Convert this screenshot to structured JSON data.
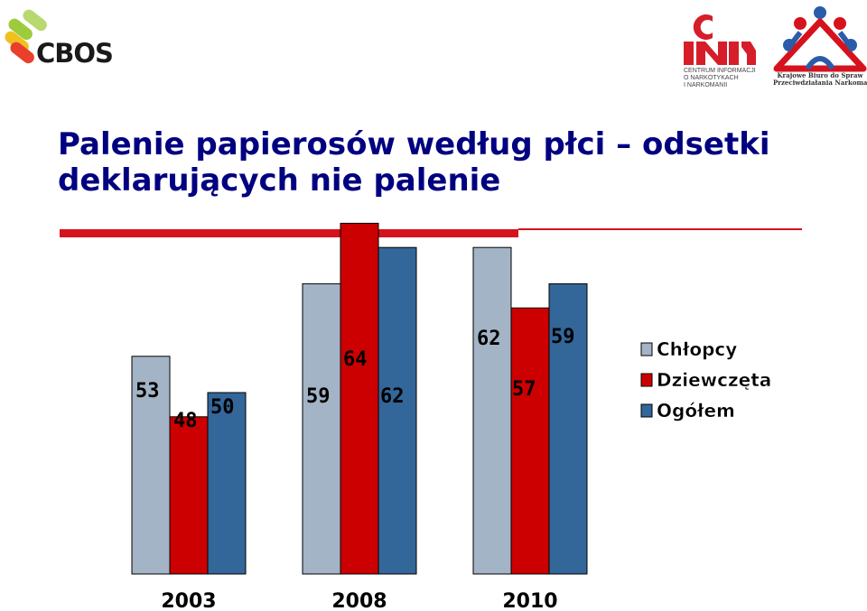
{
  "header": {
    "cbos_logo_text": "CBOS",
    "cin_logo_lines": [
      "CENTRUM INFORMACJI",
      "O NARKOTYKACH",
      "I NARKOMANII"
    ],
    "kb_logo_lines": [
      "Krajowe Biuro do Spraw",
      "Przeciwdziałania Narkomanii"
    ]
  },
  "title": "Palenie papierosów według płci – odsetki deklarujących nie palenie",
  "colors": {
    "accent_rule": "#d6121c",
    "title": "#000080"
  },
  "chart_data": {
    "type": "bar",
    "categories": [
      "2003",
      "2008",
      "2010"
    ],
    "series": [
      {
        "name": "Chłopcy",
        "color": "#a3b4c6",
        "values": [
          53,
          59,
          62
        ]
      },
      {
        "name": "Dziewczęta",
        "color": "#cc0000",
        "values": [
          48,
          64,
          57
        ]
      },
      {
        "name": "Ogółem",
        "color": "#336699",
        "values": [
          50,
          62,
          59
        ]
      }
    ],
    "legend_position": "right",
    "grid": false
  }
}
